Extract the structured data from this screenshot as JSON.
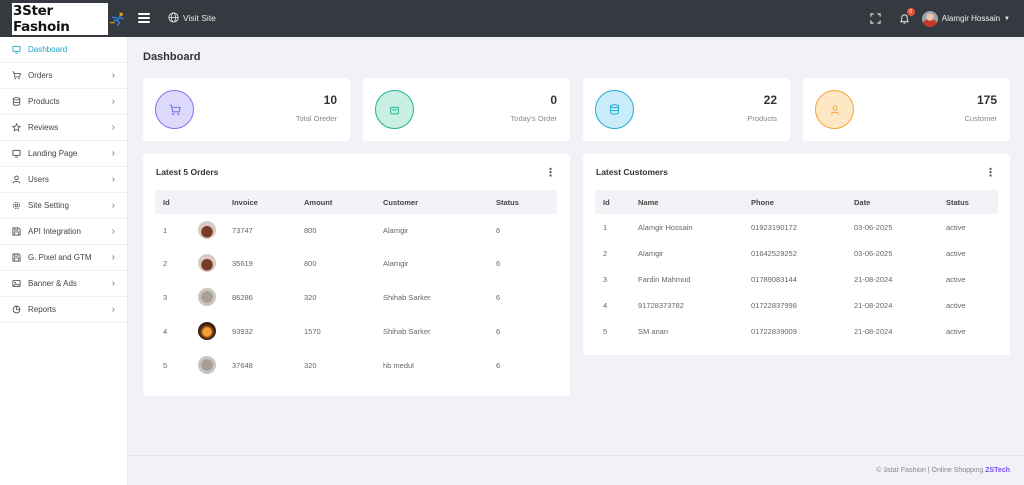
{
  "header": {
    "logo_text": "3Ster Fashoin",
    "visit_site": "Visit Site",
    "notification_count": "0",
    "user_name": "Alamgir Hossain"
  },
  "sidebar": {
    "items": [
      {
        "label": "Dashboard",
        "icon": "monitor-icon",
        "active": true
      },
      {
        "label": "Orders",
        "icon": "cart-icon"
      },
      {
        "label": "Products",
        "icon": "database-icon"
      },
      {
        "label": "Reviews",
        "icon": "star-icon"
      },
      {
        "label": "Landing Page",
        "icon": "monitor-icon"
      },
      {
        "label": "Users",
        "icon": "user-icon"
      },
      {
        "label": "Site Setting",
        "icon": "gear-icon"
      },
      {
        "label": "API Integration",
        "icon": "save-icon"
      },
      {
        "label": "G. Pixel and GTM",
        "icon": "save-icon"
      },
      {
        "label": "Banner & Ads",
        "icon": "image-icon"
      },
      {
        "label": "Reports",
        "icon": "pie-chart-icon"
      }
    ]
  },
  "page_title": "Dashboard",
  "stats": [
    {
      "value": "10",
      "label": "Total Oreder",
      "color": "#7c6ff0",
      "bg": "#dcd9fb"
    },
    {
      "value": "0",
      "label": "Today's Order",
      "color": "#1bb394",
      "bg": "#c9efe2"
    },
    {
      "value": "22",
      "label": "Products",
      "color": "#22a7d6",
      "bg": "#c8ecf8"
    },
    {
      "value": "175",
      "label": "Customer",
      "color": "#f3a432",
      "bg": "#fde7c5"
    }
  ],
  "orders": {
    "title": "Latest 5 Orders",
    "columns": [
      "Id",
      "",
      "Invoice",
      "Amount",
      "Customer",
      "Status"
    ],
    "rows": [
      {
        "id": "1",
        "invoice": "73747",
        "amount": "800",
        "customer": "Alamgir",
        "status": "6"
      },
      {
        "id": "2",
        "invoice": "35619",
        "amount": "800",
        "customer": "Alamgir",
        "status": "6"
      },
      {
        "id": "3",
        "invoice": "86286",
        "amount": "320",
        "customer": "Shihab Sarker",
        "status": "6"
      },
      {
        "id": "4",
        "invoice": "93932",
        "amount": "1570",
        "customer": "Shihab Sarker",
        "status": "6"
      },
      {
        "id": "5",
        "invoice": "37648",
        "amount": "320",
        "customer": "hb medul",
        "status": "6"
      }
    ]
  },
  "customers": {
    "title": "Latest Customers",
    "columns": [
      "Id",
      "Name",
      "Phone",
      "Date",
      "Status"
    ],
    "rows": [
      {
        "id": "1",
        "name": "Alamgir Hossain",
        "phone": "01923190172",
        "date": "03-06-2025",
        "status": "active"
      },
      {
        "id": "2",
        "name": "Alamgir",
        "phone": "01642529252",
        "date": "03-06-2025",
        "status": "active"
      },
      {
        "id": "3",
        "name": "Fardin Mahmud",
        "phone": "01789083144",
        "date": "21-08-2024",
        "status": "active"
      },
      {
        "id": "4",
        "name": "91728373782",
        "phone": "01722837998",
        "date": "21-08-2024",
        "status": "active"
      },
      {
        "id": "5",
        "name": "SM anan",
        "phone": "01722839009",
        "date": "21-08-2024",
        "status": "active"
      }
    ]
  },
  "footer": {
    "text": "© 3star Fashion | Online Shopping",
    "link": "ZSTech"
  }
}
